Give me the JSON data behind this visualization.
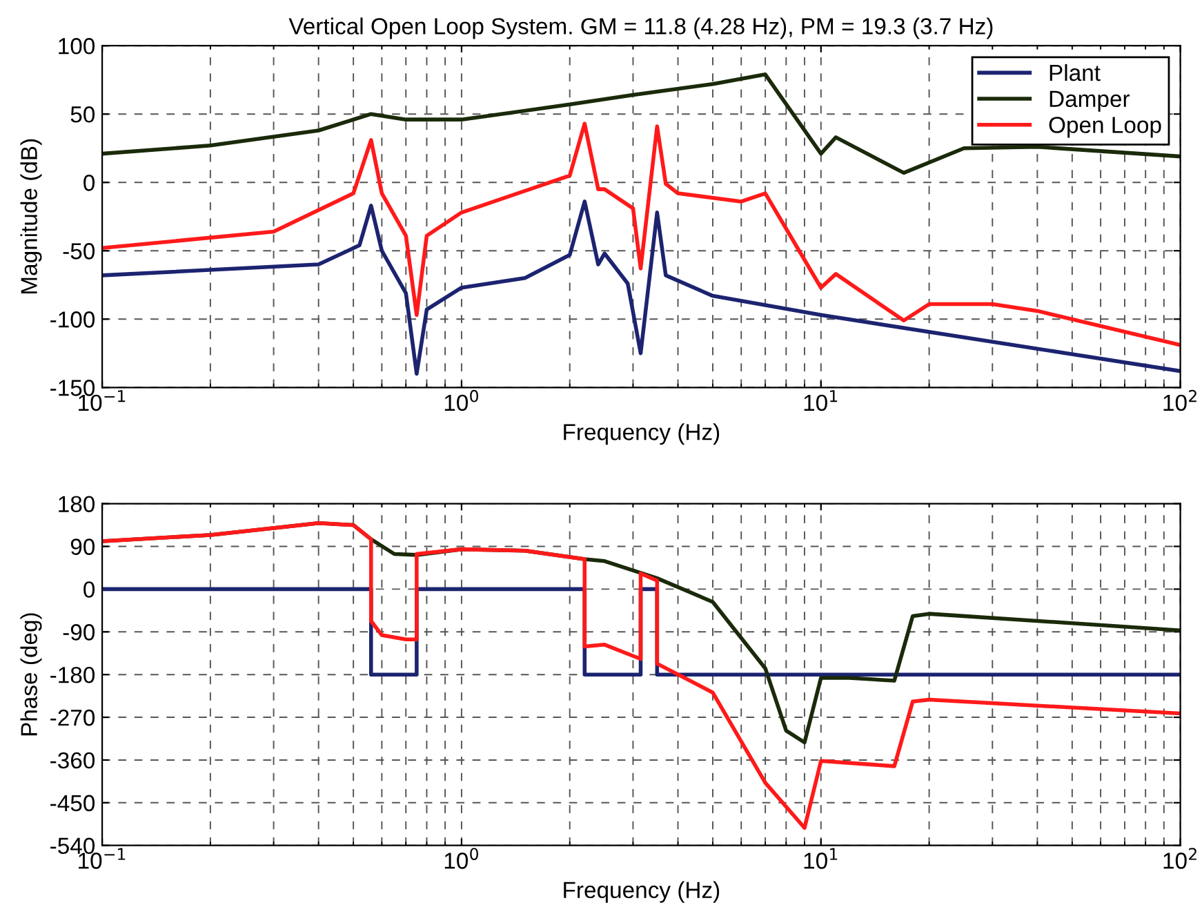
{
  "chart_data": [
    {
      "type": "line",
      "title": "Vertical Open Loop System. GM = 11.8 (4.28 Hz), PM = 19.3 (3.7 Hz)",
      "xlabel": "Frequency (Hz)",
      "ylabel": "Magnitude (dB)",
      "log": "x",
      "grid": true,
      "legend": "top right",
      "xlim": [
        0.1,
        100
      ],
      "xticks": [
        {
          "value": 0.1,
          "label": "10$^{−1}$"
        },
        {
          "value": 1,
          "label": "10$^{0}$"
        },
        {
          "value": 10,
          "label": "10$^{1}$"
        },
        {
          "value": 100,
          "label": "10$^{2}$"
        }
      ],
      "ylim": [
        -150,
        100
      ],
      "yticks": [
        -150,
        -100,
        -50,
        0,
        50,
        100
      ],
      "series": [
        {
          "name": "Plant",
          "color": "#1c2470",
          "x": [
            0.1,
            0.4,
            0.52,
            0.56,
            0.6,
            0.7,
            0.75,
            0.8,
            1,
            1.5,
            2,
            2.2,
            2.4,
            2.5,
            2.9,
            3.15,
            3.5,
            3.7,
            5,
            10,
            100
          ],
          "values": [
            -68,
            -60,
            -46,
            -17,
            -50,
            -81,
            -140,
            -93,
            -77,
            -70,
            -53,
            -14,
            -60,
            -52,
            -74,
            -125,
            -22,
            -68,
            -83,
            -97,
            -138
          ]
        },
        {
          "name": "Damper",
          "color": "#1a2a0a",
          "x": [
            0.1,
            0.2,
            0.4,
            0.56,
            0.7,
            1,
            2,
            3,
            5,
            7,
            10,
            11,
            17,
            25,
            40,
            100
          ],
          "values": [
            21,
            27,
            38,
            50,
            46,
            46,
            57,
            64,
            72,
            79,
            21,
            33,
            7,
            25,
            26,
            19
          ]
        },
        {
          "name": "Open Loop",
          "color": "#ff1a1a",
          "x": [
            0.1,
            0.3,
            0.5,
            0.56,
            0.6,
            0.7,
            0.75,
            0.8,
            1,
            2,
            2.2,
            2.4,
            2.5,
            3,
            3.15,
            3.5,
            3.7,
            4,
            6,
            7,
            10,
            11,
            17,
            20,
            30,
            40,
            100
          ],
          "values": [
            -48,
            -36,
            -8,
            31,
            -8,
            -39,
            -97,
            -39,
            -22,
            5,
            43,
            -5,
            -5,
            -19,
            -63,
            41,
            -1,
            -8,
            -14,
            -8,
            -77,
            -67,
            -101,
            -89,
            -89,
            -94,
            -119
          ]
        }
      ]
    },
    {
      "type": "line",
      "xlabel": "Frequency (Hz)",
      "ylabel": "Phase (deg)",
      "log": "x",
      "grid": true,
      "xlim": [
        0.1,
        100
      ],
      "xticks": [
        {
          "value": 0.1,
          "label": "10$^{−1}$"
        },
        {
          "value": 1,
          "label": "10$^{0}$"
        },
        {
          "value": 10,
          "label": "10$^{1}$"
        },
        {
          "value": 100,
          "label": "10$^{2}$"
        }
      ],
      "ylim": [
        -540,
        180
      ],
      "yticks": [
        -540,
        -450,
        -360,
        -270,
        -180,
        -90,
        0,
        90,
        180
      ],
      "series": [
        {
          "color": "#1c2470",
          "x": [
            0.1,
            0.56,
            0.56,
            0.75,
            0.75,
            2.2,
            2.2,
            3.15,
            3.15,
            3.5,
            3.5,
            100
          ],
          "values": [
            0,
            0,
            -180,
            -180,
            0,
            0,
            -180,
            -180,
            0,
            0,
            -180,
            -180
          ]
        },
        {
          "color": "#1a2a0a",
          "x": [
            0.1,
            0.2,
            0.4,
            0.5,
            0.56,
            0.65,
            0.75,
            1,
            1.5,
            2.2,
            2.5,
            3.5,
            5,
            7,
            8,
            9,
            10,
            12,
            16,
            18,
            20,
            40,
            100
          ],
          "values": [
            101,
            114,
            139,
            135,
            105,
            74,
            72,
            84,
            81,
            63,
            59,
            23,
            -27,
            -167,
            -298,
            -323,
            -187,
            -187,
            -193,
            -57,
            -52,
            -67,
            -87
          ]
        },
        {
          "color": "#ff1a1a",
          "x": [
            0.1,
            0.2,
            0.4,
            0.5,
            0.56,
            0.56,
            0.6,
            0.7,
            0.75,
            0.75,
            1,
            1.5,
            2.2,
            2.2,
            2.5,
            3.15,
            3.15,
            3.5,
            3.5,
            5,
            7,
            9,
            10,
            16,
            18,
            20,
            100
          ],
          "values": [
            101,
            114,
            139,
            135,
            105,
            -67,
            -97,
            -106,
            -106,
            74,
            84,
            81,
            63,
            -121,
            -117,
            -147,
            33,
            18,
            -157,
            -218,
            -408,
            -503,
            -362,
            -373,
            -237,
            -233,
            -262
          ]
        }
      ]
    }
  ]
}
